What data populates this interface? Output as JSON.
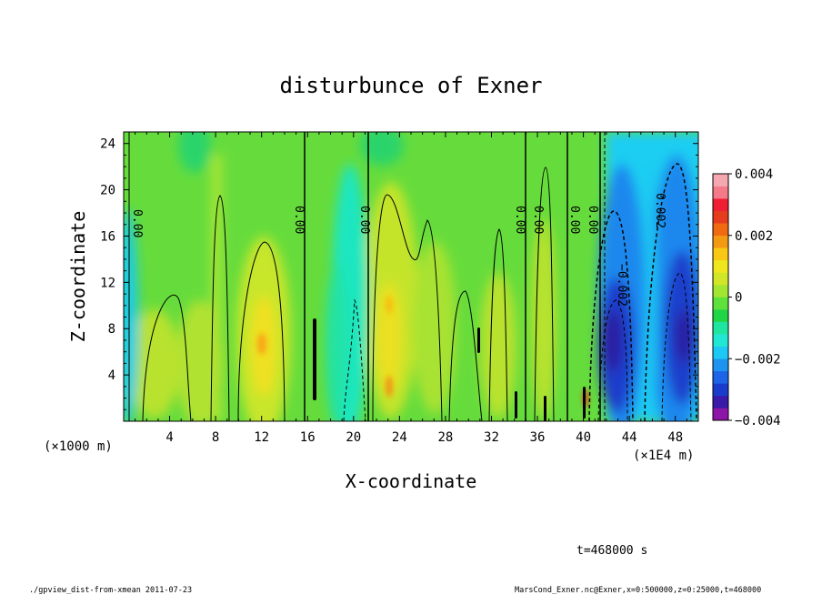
{
  "chart_data": {
    "type": "heatmap",
    "title": "disturbunce of Exner",
    "xlabel": "X-coordinate",
    "ylabel": "Z-coordinate",
    "x_units_left": "(×1000 m)",
    "x_units_right": "(×1E4 m)",
    "xlim": [
      0,
      50
    ],
    "ylim": [
      0,
      25
    ],
    "x_ticks": [
      "4",
      "8",
      "12",
      "16",
      "20",
      "24",
      "28",
      "32",
      "36",
      "40",
      "44",
      "48"
    ],
    "y_ticks": [
      "4",
      "8",
      "12",
      "16",
      "20",
      "24"
    ],
    "colorbar": {
      "range": [
        -0.004,
        0.004
      ],
      "tick_labels": [
        "0.004",
        "0.002",
        "0",
        "−0.002",
        "−0.004"
      ],
      "colors": [
        "#8e16a6",
        "#3a1aa8",
        "#1a3ccc",
        "#1e64e6",
        "#1e94f0",
        "#1ec8f4",
        "#22e6d4",
        "#1ee6a0",
        "#20d646",
        "#5ee13a",
        "#a2e632",
        "#d2e628",
        "#f0e61e",
        "#f8c814",
        "#f49a12",
        "#f06a12",
        "#e63c1e",
        "#f01e32",
        "#f47a8a",
        "#f6a8b0"
      ]
    },
    "contour_labels": [
      "0.00",
      "0.00",
      "0.00",
      "0.00",
      "0.00",
      "0.00",
      "0.00",
      "0.00",
      "0.002",
      "−0.002"
    ],
    "regions": [
      {
        "name": "background",
        "value": 0.0005
      },
      {
        "name": "negative-band-right",
        "x_range": [
          41,
          50
        ],
        "value": -0.0025
      },
      {
        "name": "min-core-1",
        "x": 42.5,
        "z": 7,
        "value": -0.0035
      },
      {
        "name": "min-core-2",
        "x": 48,
        "z": 8,
        "value": -0.0033
      },
      {
        "name": "positive-core-1",
        "x": 12,
        "z": 6,
        "value": 0.0016
      },
      {
        "name": "positive-core-2",
        "x": 23,
        "z": 8,
        "value": 0.0014
      },
      {
        "name": "negative-strip",
        "x": 19.5,
        "z": 8,
        "value": -0.0008
      },
      {
        "name": "negative-strip-left",
        "x": 0.5,
        "z": 8,
        "value": -0.0012
      }
    ]
  },
  "footer": {
    "time": "t=468000 s",
    "script": "./gpview_dist-from-xmean  2011-07-23",
    "file": "MarsCond_Exner.nc@Exner,x=0:500000,z=0:25000,t=468000"
  }
}
